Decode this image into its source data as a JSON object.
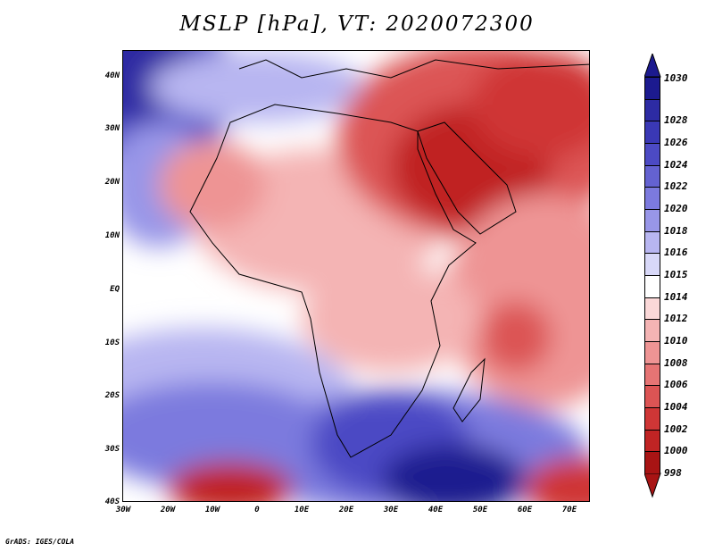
{
  "title": "MSLP [hPa], VT: 2020072300",
  "credit": "GrADS: IGES/COLA",
  "map": {
    "lat_labels": [
      "40N",
      "30N",
      "20N",
      "10N",
      "EQ",
      "10S",
      "20S",
      "30S",
      "40S"
    ],
    "lon_labels": [
      "30W",
      "20W",
      "10W",
      "0",
      "10E",
      "20E",
      "30E",
      "40E",
      "50E",
      "60E",
      "70E"
    ],
    "lat_values": [
      40,
      30,
      20,
      10,
      0,
      -10,
      -20,
      -30,
      -40
    ],
    "lon_values": [
      -30,
      -20,
      -10,
      0,
      10,
      20,
      30,
      40,
      50,
      60,
      70
    ],
    "extent": {
      "lon_min": -30,
      "lon_max": 75,
      "lat_min": -40,
      "lat_max": 44
    }
  },
  "colorbar": {
    "labels": [
      "1030",
      "1028",
      "1026",
      "1024",
      "1022",
      "1020",
      "1018",
      "1016",
      "1015",
      "1014",
      "1012",
      "1010",
      "1008",
      "1006",
      "1004",
      "1002",
      "1000",
      "998"
    ],
    "colors": [
      "#1c1a8f",
      "#2d2ba3",
      "#3a38b5",
      "#4c4ac4",
      "#6462d1",
      "#7c7ade",
      "#9896e8",
      "#b8b6f1",
      "#d8d8f8",
      "#ffffff",
      "#fbd8d8",
      "#f4b4b4",
      "#ee9494",
      "#e67474",
      "#dc5454",
      "#cf3636",
      "#c02424",
      "#a81414"
    ],
    "top_color": "#1c1a8f",
    "bottom_color": "#a81414"
  }
}
